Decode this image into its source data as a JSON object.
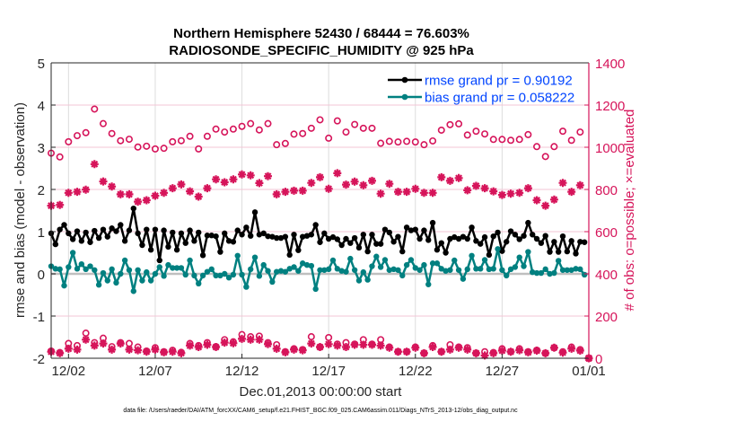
{
  "chart_data": {
    "type": "line",
    "title": [
      "Northern Hemisphere 52430 / 68444 = 76.603%",
      "RADIOSONDE_SPECIFIC_HUMIDITY @ 925 hPa"
    ],
    "xlabel": "Dec.01,2013 00:00:00 start",
    "ylabel_left": "rmse and bias (model - observation)",
    "ylabel_right": "# of obs: o=possible; ×=evaluated",
    "footnote": "data file: /Users/raeder/DAI/ATM_forcXX/CAM6_setup/f.e21.FHIST_BGC.f09_025.CAM6assim.011/Diags_NTrS_2013-12/obs_diag_output.nc",
    "xlim": [
      "2013-12-01T00:00",
      "2014-01-01T00:00"
    ],
    "x_ticks": [
      {
        "at": "2013-12-02T00:00",
        "label": "12/02"
      },
      {
        "at": "2013-12-07T00:00",
        "label": "12/07"
      },
      {
        "at": "2013-12-12T00:00",
        "label": "12/12"
      },
      {
        "at": "2013-12-17T00:00",
        "label": "12/17"
      },
      {
        "at": "2013-12-22T00:00",
        "label": "12/22"
      },
      {
        "at": "2013-12-27T00:00",
        "label": "12/27"
      },
      {
        "at": "2014-01-01T00:00",
        "label": "01/01"
      }
    ],
    "ylim_left": [
      -2,
      5
    ],
    "y_ticks_left": [
      "-2",
      "-1",
      "0",
      "1",
      "2",
      "3",
      "4",
      "5"
    ],
    "ylim_right": [
      0,
      1400
    ],
    "y_ticks_right": [
      "0",
      "200",
      "400",
      "600",
      "800",
      "1000",
      "1200",
      "1400"
    ],
    "grid": true,
    "legend_position": "top-right",
    "colors": {
      "rmse": "#000000",
      "bias": "#008080",
      "obs": "#d6145a",
      "legend_text": "#0044ff",
      "zero_line": "#bfbfbf"
    },
    "x_6hourly": [
      "2013-12-01T00:00",
      "2013-12-01T06:00",
      "2013-12-01T12:00",
      "2013-12-01T18:00",
      "2013-12-02T00:00",
      "2013-12-02T06:00",
      "2013-12-02T12:00",
      "2013-12-02T18:00",
      "2013-12-03T00:00",
      "2013-12-03T06:00",
      "2013-12-03T12:00",
      "2013-12-03T18:00",
      "2013-12-04T00:00",
      "2013-12-04T06:00",
      "2013-12-04T12:00",
      "2013-12-04T18:00",
      "2013-12-05T00:00",
      "2013-12-05T06:00",
      "2013-12-05T12:00",
      "2013-12-05T18:00",
      "2013-12-06T00:00",
      "2013-12-06T06:00",
      "2013-12-06T12:00",
      "2013-12-06T18:00",
      "2013-12-07T00:00",
      "2013-12-07T06:00",
      "2013-12-07T12:00",
      "2013-12-07T18:00",
      "2013-12-08T00:00",
      "2013-12-08T06:00",
      "2013-12-08T12:00",
      "2013-12-08T18:00",
      "2013-12-09T00:00",
      "2013-12-09T06:00",
      "2013-12-09T12:00",
      "2013-12-09T18:00",
      "2013-12-10T00:00",
      "2013-12-10T06:00",
      "2013-12-10T12:00",
      "2013-12-10T18:00",
      "2013-12-11T00:00",
      "2013-12-11T06:00",
      "2013-12-11T12:00",
      "2013-12-11T18:00",
      "2013-12-12T00:00",
      "2013-12-12T06:00",
      "2013-12-12T12:00",
      "2013-12-12T18:00",
      "2013-12-13T00:00",
      "2013-12-13T06:00",
      "2013-12-13T12:00",
      "2013-12-13T18:00",
      "2013-12-14T00:00",
      "2013-12-14T06:00",
      "2013-12-14T12:00",
      "2013-12-14T18:00",
      "2013-12-15T00:00",
      "2013-12-15T06:00",
      "2013-12-15T12:00",
      "2013-12-15T18:00",
      "2013-12-16T00:00",
      "2013-12-16T06:00",
      "2013-12-16T12:00",
      "2013-12-16T18:00",
      "2013-12-17T00:00",
      "2013-12-17T06:00",
      "2013-12-17T12:00",
      "2013-12-17T18:00",
      "2013-12-18T00:00",
      "2013-12-18T06:00",
      "2013-12-18T12:00",
      "2013-12-18T18:00",
      "2013-12-19T00:00",
      "2013-12-19T06:00",
      "2013-12-19T12:00",
      "2013-12-19T18:00",
      "2013-12-20T00:00",
      "2013-12-20T06:00",
      "2013-12-20T12:00",
      "2013-12-20T18:00",
      "2013-12-21T00:00",
      "2013-12-21T06:00",
      "2013-12-21T12:00",
      "2013-12-21T18:00",
      "2013-12-22T00:00",
      "2013-12-22T06:00",
      "2013-12-22T12:00",
      "2013-12-22T18:00",
      "2013-12-23T00:00",
      "2013-12-23T06:00",
      "2013-12-23T12:00",
      "2013-12-23T18:00",
      "2013-12-24T00:00",
      "2013-12-24T06:00",
      "2013-12-24T12:00",
      "2013-12-24T18:00",
      "2013-12-25T00:00",
      "2013-12-25T06:00",
      "2013-12-25T12:00",
      "2013-12-25T18:00",
      "2013-12-26T00:00",
      "2013-12-26T06:00",
      "2013-12-26T12:00",
      "2013-12-26T18:00",
      "2013-12-27T00:00",
      "2013-12-27T06:00",
      "2013-12-27T12:00",
      "2013-12-27T18:00",
      "2013-12-28T00:00",
      "2013-12-28T06:00",
      "2013-12-28T12:00",
      "2013-12-28T18:00",
      "2013-12-29T00:00",
      "2013-12-29T06:00",
      "2013-12-29T12:00",
      "2013-12-29T18:00",
      "2013-12-30T00:00",
      "2013-12-30T06:00",
      "2013-12-30T12:00",
      "2013-12-30T18:00",
      "2013-12-31T00:00",
      "2013-12-31T06:00",
      "2013-12-31T12:00",
      "2013-12-31T18:00"
    ],
    "x_12hourly": [
      "2013-12-01T00:00",
      "2013-12-01T12:00",
      "2013-12-02T00:00",
      "2013-12-02T12:00",
      "2013-12-03T00:00",
      "2013-12-03T12:00",
      "2013-12-04T00:00",
      "2013-12-04T12:00",
      "2013-12-05T00:00",
      "2013-12-05T12:00",
      "2013-12-06T00:00",
      "2013-12-06T12:00",
      "2013-12-07T00:00",
      "2013-12-07T12:00",
      "2013-12-08T00:00",
      "2013-12-08T12:00",
      "2013-12-09T00:00",
      "2013-12-09T12:00",
      "2013-12-10T00:00",
      "2013-12-10T12:00",
      "2013-12-11T00:00",
      "2013-12-11T12:00",
      "2013-12-12T00:00",
      "2013-12-12T12:00",
      "2013-12-13T00:00",
      "2013-12-13T12:00",
      "2013-12-14T00:00",
      "2013-12-14T12:00",
      "2013-12-15T00:00",
      "2013-12-15T12:00",
      "2013-12-16T00:00",
      "2013-12-16T12:00",
      "2013-12-17T00:00",
      "2013-12-17T12:00",
      "2013-12-18T00:00",
      "2013-12-18T12:00",
      "2013-12-19T00:00",
      "2013-12-19T12:00",
      "2013-12-20T00:00",
      "2013-12-20T12:00",
      "2013-12-21T00:00",
      "2013-12-21T12:00",
      "2013-12-22T00:00",
      "2013-12-22T12:00",
      "2013-12-23T00:00",
      "2013-12-23T12:00",
      "2013-12-24T00:00",
      "2013-12-24T12:00",
      "2013-12-25T00:00",
      "2013-12-25T12:00",
      "2013-12-26T00:00",
      "2013-12-26T12:00",
      "2013-12-27T00:00",
      "2013-12-27T12:00",
      "2013-12-28T00:00",
      "2013-12-28T12:00",
      "2013-12-29T00:00",
      "2013-12-29T12:00",
      "2013-12-30T00:00",
      "2013-12-30T12:00",
      "2013-12-31T00:00",
      "2013-12-31T12:00",
      "2014-01-01T00:00"
    ],
    "series": [
      {
        "name": "rmse grand pr = 0.90192",
        "axis": "left",
        "x": "x_6hourly",
        "style": "line-dot",
        "color": "#000000",
        "values": [
          0.96,
          0.7,
          1.05,
          1.16,
          0.96,
          0.82,
          1.01,
          0.78,
          0.98,
          0.75,
          1.02,
          0.85,
          1.05,
          0.88,
          1.08,
          1.01,
          1.16,
          0.78,
          1.03,
          1.55,
          0.96,
          0.68,
          1.05,
          0.57,
          1.05,
          0.32,
          1.03,
          0.64,
          0.98,
          0.57,
          0.96,
          0.73,
          1.03,
          0.78,
          0.98,
          0.44,
          0.91,
          0.91,
          0.89,
          0.52,
          0.96,
          0.78,
          0.76,
          1.03,
          0.93,
          1.1,
          0.9,
          1.46,
          0.93,
          0.96,
          0.89,
          0.88,
          0.85,
          0.85,
          0.88,
          0.45,
          0.93,
          0.56,
          0.88,
          0.9,
          0.93,
          1.16,
          0.75,
          0.96,
          0.83,
          0.87,
          0.82,
          0.68,
          0.83,
          0.73,
          0.85,
          0.62,
          0.93,
          0.53,
          0.93,
          0.71,
          0.71,
          1.05,
          0.98,
          0.76,
          0.88,
          0.53,
          1.1,
          1.03,
          1.05,
          0.83,
          1.03,
          0.8,
          1.21,
          0.57,
          0.73,
          0.5,
          0.83,
          0.87,
          0.83,
          0.88,
          0.83,
          1.1,
          0.78,
          0.71,
          0.87,
          0.45,
          0.89,
          0.98,
          0.54,
          0.76,
          1.01,
          0.93,
          0.82,
          0.9,
          1.21,
          0.93,
          0.83,
          0.73,
          0.9,
          0.52,
          0.76,
          0.52,
          0.89,
          0.53,
          0.78,
          0.48,
          0.76,
          0.75
        ]
      },
      {
        "name": "bias grand pr = 0.058222",
        "axis": "left",
        "x": "x_6hourly",
        "style": "line-dot",
        "color": "#008080",
        "values": [
          0.18,
          0.12,
          0.11,
          -0.28,
          0.16,
          0.5,
          0.12,
          0.23,
          0.11,
          0.18,
          0.09,
          -0.26,
          0.02,
          -0.16,
          0.11,
          -0.21,
          0.0,
          0.32,
          0.09,
          -0.41,
          0.09,
          -0.16,
          0.04,
          -0.16,
          0.0,
          0.16,
          -0.05,
          0.21,
          0.14,
          0.14,
          0.14,
          -0.02,
          0.32,
          -0.04,
          -0.23,
          -0.04,
          0.05,
          0.11,
          -0.04,
          -0.04,
          0.0,
          -0.09,
          -0.02,
          0.43,
          -0.02,
          -0.31,
          0.11,
          0.39,
          -0.05,
          0.21,
          0.07,
          -0.19,
          0.05,
          0.07,
          0.05,
          0.12,
          0.16,
          0.07,
          0.25,
          0.21,
          0.19,
          -0.36,
          0.09,
          0.09,
          0.11,
          0.32,
          0.12,
          0.07,
          0.05,
          0.36,
          0.09,
          -0.16,
          0.04,
          -0.14,
          0.18,
          0.41,
          0.16,
          0.33,
          0.09,
          0.11,
          0.09,
          -0.04,
          0.21,
          0.33,
          0.14,
          0.09,
          0.21,
          -0.25,
          0.25,
          0.25,
          0.12,
          0.07,
          0.09,
          0.32,
          0.09,
          -0.12,
          0.11,
          0.43,
          0.12,
          0.12,
          0.33,
          0.11,
          0.12,
          0.59,
          0.09,
          -0.04,
          0.11,
          0.16,
          0.39,
          0.18,
          0.52,
          0.04,
          0.02,
          0.02,
          0.11,
          0.0,
          0.02,
          0.31,
          0.09,
          0.09,
          0.09,
          0.12,
          0.11,
          -0.02
        ]
      },
      {
        "axis": "right",
        "x": "x_12hourly",
        "style": "circle",
        "color": "#d6145a",
        "values": [
          972,
          954,
          1026,
          1055,
          1069,
          1181,
          1112,
          1065,
          1031,
          1038,
          1001,
          1005,
          992,
          995,
          1026,
          1031,
          1052,
          992,
          1052,
          1086,
          1072,
          1086,
          1099,
          1112,
          1082,
          1112,
          1012,
          1018,
          1062,
          1065,
          1090,
          1130,
          1043,
          1125,
          1072,
          1108,
          1090,
          1090,
          1019,
          1028,
          1025,
          1028,
          1025,
          1012,
          1030,
          1081,
          1107,
          1111,
          1058,
          1076,
          1063,
          1037,
          1037,
          1033,
          1037,
          1060,
          1003,
          956,
          1003,
          1076,
          1033,
          1072,
          0
        ]
      },
      {
        "axis": "right",
        "x": "x_12hourly",
        "style": "asterisk",
        "color": "#d6145a",
        "values": [
          723,
          727,
          784,
          789,
          799,
          920,
          838,
          814,
          777,
          777,
          742,
          749,
          770,
          784,
          806,
          824,
          791,
          766,
          806,
          848,
          834,
          848,
          871,
          867,
          830,
          863,
          777,
          789,
          794,
          794,
          831,
          858,
          803,
          877,
          823,
          837,
          820,
          841,
          780,
          827,
          789,
          789,
          803,
          784,
          784,
          858,
          841,
          854,
          796,
          817,
          806,
          791,
          774,
          780,
          784,
          806,
          749,
          723,
          752,
          831,
          789,
          820,
          0
        ]
      },
      {
        "axis": "right",
        "x": "x_12hourly",
        "style": "circle",
        "color": "#d6145a",
        "values": [
          34,
          27,
          70,
          60,
          119,
          74,
          95,
          55,
          74,
          70,
          53,
          34,
          50,
          31,
          38,
          28,
          70,
          60,
          74,
          55,
          88,
          78,
          112,
          102,
          105,
          74,
          64,
          31,
          45,
          41,
          102,
          53,
          98,
          67,
          74,
          67,
          88,
          67,
          88,
          53,
          31,
          31,
          53,
          24,
          60,
          31,
          64,
          53,
          50,
          24,
          31,
          27,
          45,
          31,
          45,
          31,
          38,
          24,
          50,
          31,
          53,
          41,
          0
        ]
      },
      {
        "axis": "right",
        "x": "x_12hourly",
        "style": "asterisk",
        "color": "#d6145a",
        "values": [
          31,
          24,
          45,
          41,
          88,
          60,
          70,
          41,
          70,
          41,
          38,
          31,
          41,
          28,
          31,
          24,
          60,
          53,
          64,
          53,
          74,
          71,
          92,
          88,
          88,
          67,
          45,
          28,
          41,
          38,
          70,
          53,
          67,
          60,
          53,
          64,
          64,
          64,
          60,
          50,
          31,
          31,
          50,
          24,
          53,
          31,
          41,
          50,
          41,
          24,
          13,
          24,
          36,
          31,
          38,
          28,
          36,
          24,
          50,
          27,
          45,
          36,
          0
        ]
      }
    ]
  }
}
